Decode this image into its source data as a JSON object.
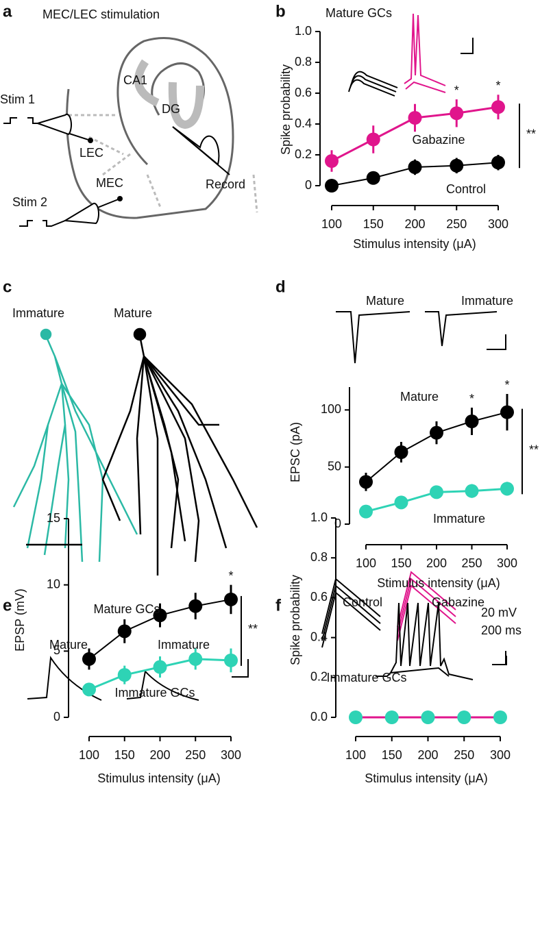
{
  "panel_labels": [
    "a",
    "b",
    "c",
    "d",
    "e",
    "f"
  ],
  "diagram_a": {
    "title": "MEC/LEC stimulation",
    "stim1": "Stim 1",
    "stim2": "Stim 2",
    "lec": "LEC",
    "mec": "MEC",
    "ca1": "CA1",
    "dg": "DG",
    "record": "Record"
  },
  "panel_c": {
    "immature": "Immature",
    "mature": "Mature"
  },
  "chart_data": [
    {
      "type": "line",
      "title": "Mature GCs",
      "x_label": "Stimulus intensity (μA)",
      "y_label": "Spike probability",
      "x": [
        100,
        150,
        200,
        250,
        300
      ],
      "xlim": [
        100,
        300
      ],
      "xticks": [
        100,
        150,
        200,
        250,
        300
      ],
      "ylim": [
        0,
        1
      ],
      "yticks": [
        0,
        0.2,
        0.4,
        0.6,
        0.8,
        {
          "value": 1,
          "label": "1.0"
        }
      ],
      "series": [
        {
          "name": "Gabazine",
          "color": "#e0158c",
          "values": [
            0.16,
            0.3,
            0.44,
            0.47,
            0.51
          ],
          "errors": [
            0.07,
            0.09,
            0.09,
            0.09,
            0.08
          ]
        },
        {
          "name": "Control",
          "color": "#000000",
          "values": [
            0,
            0.05,
            0.12,
            0.13,
            0.15
          ],
          "errors": [
            0.01,
            0.02,
            0.05,
            0.05,
            0.05
          ]
        }
      ],
      "significance": [
        {
          "x": 250,
          "label": "*"
        },
        {
          "x": 300,
          "label": "*"
        }
      ],
      "comparison_label": "**"
    },
    {
      "type": "line",
      "x_label": "Stimulus intensity (μA)",
      "y_label": "EPSC (pA)",
      "trace_labels": [
        "Mature",
        "Immature"
      ],
      "x": [
        100,
        150,
        200,
        250,
        300
      ],
      "xlim": [
        100,
        300
      ],
      "xticks": [
        100,
        150,
        200,
        250,
        300
      ],
      "ylim": [
        0,
        120
      ],
      "yticks": [
        0,
        50,
        100
      ],
      "series": [
        {
          "name": "Mature",
          "color": "#000000",
          "values": [
            37,
            63,
            80,
            90,
            98
          ],
          "errors": [
            8,
            9,
            10,
            12,
            16
          ]
        },
        {
          "name": "Immature",
          "color": "#2ed3b5",
          "values": [
            11,
            19,
            28,
            29,
            31
          ],
          "errors": [
            3,
            4,
            5,
            6,
            6
          ]
        }
      ],
      "significance": [
        {
          "x": 250,
          "label": "*"
        },
        {
          "x": 300,
          "label": "*"
        }
      ],
      "comparison_label": "**"
    },
    {
      "type": "line",
      "x_label": "Stimulus intensity (μA)",
      "y_label": "EPSP (mV)",
      "trace_labels": [
        "Mature",
        "Immature"
      ],
      "x": [
        100,
        150,
        200,
        250,
        300
      ],
      "xlim": [
        100,
        300
      ],
      "xticks": [
        100,
        150,
        200,
        250,
        300
      ],
      "ylim": [
        0,
        15
      ],
      "yticks": [
        0,
        5,
        10,
        15
      ],
      "series": [
        {
          "name": "Mature GCs",
          "color": "#000000",
          "values": [
            4.4,
            6.5,
            7.7,
            8.4,
            8.9
          ],
          "errors": [
            0.8,
            0.9,
            0.9,
            1.0,
            1.1
          ]
        },
        {
          "name": "Immature GCs",
          "color": "#2ed3b5",
          "values": [
            2.1,
            3.2,
            3.8,
            4.4,
            4.3
          ],
          "errors": [
            0.3,
            0.7,
            0.8,
            0.8,
            0.9
          ]
        }
      ],
      "significance": [
        {
          "x": 300,
          "label": "*"
        }
      ],
      "comparison_label": "**"
    },
    {
      "type": "line",
      "x_label": "Stimulus intensity (μA)",
      "y_label": "Spike probability",
      "trace_labels": [
        "Control",
        "Gabazine",
        "20 mV",
        "200 ms"
      ],
      "x": [
        100,
        150,
        200,
        250,
        300
      ],
      "xlim": [
        100,
        300
      ],
      "xticks": [
        100,
        150,
        200,
        250,
        300
      ],
      "ylim": [
        0,
        1
      ],
      "yticks": [
        {
          "value": 0,
          "label": "0.0"
        },
        0.2,
        0.4,
        0.6,
        0.8,
        {
          "value": 1,
          "label": "1.0"
        }
      ],
      "series": [
        {
          "name": "Immature GCs",
          "color": "#e0158c",
          "marker_color": "#2ed3b5",
          "values": [
            0,
            0,
            0,
            0,
            0
          ]
        }
      ]
    }
  ]
}
